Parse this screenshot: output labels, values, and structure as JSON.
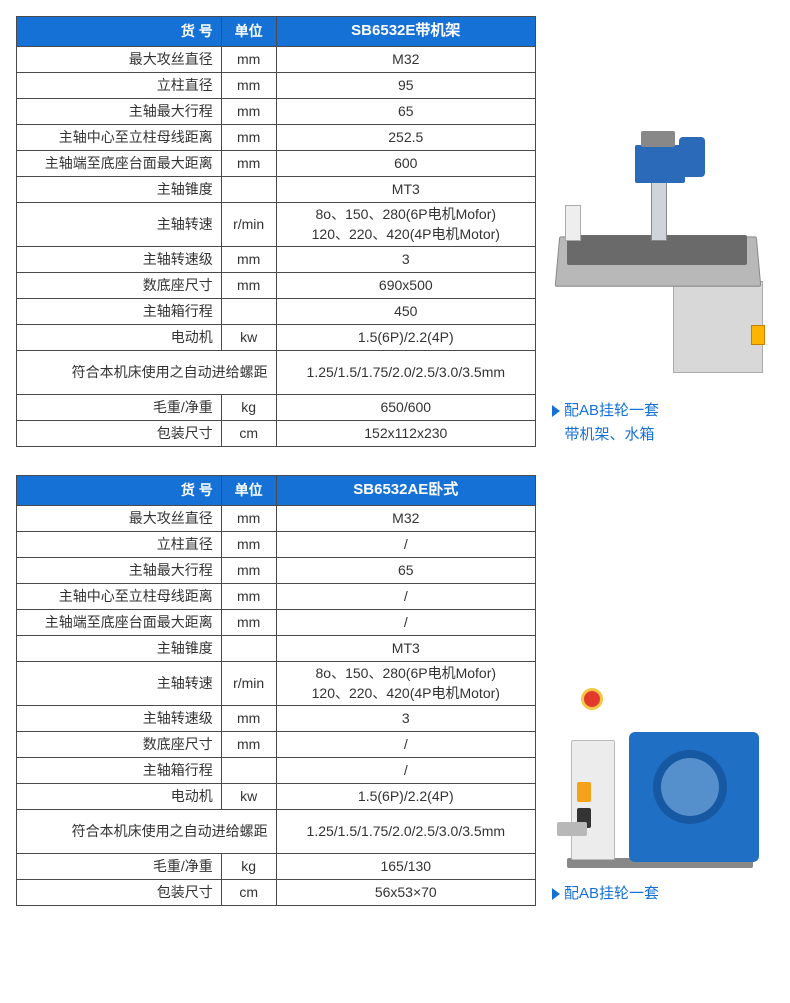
{
  "headers": {
    "col1": "货 号",
    "col2": "单位",
    "col3_1": "SB6532E带机架",
    "col3_2": "SB6532AE卧式"
  },
  "params": [
    "最大攻丝直径",
    "立柱直径",
    "主轴最大行程",
    "主轴中心至立柱母线距离",
    "主轴端至底座台面最大距离",
    "主轴锥度",
    "主轴转速",
    "主轴转速级",
    "数底座尺寸",
    "主轴箱行程",
    "电动机",
    "符合本机床使用之自动进给螺距",
    "毛重/净重",
    "包装尺寸"
  ],
  "units": [
    "mm",
    "mm",
    "mm",
    "mm",
    "mm",
    "",
    "r/min",
    "mm",
    "mm",
    "",
    "kw",
    "",
    "kg",
    "cm"
  ],
  "t1": [
    "M32",
    "95",
    "65",
    "252.5",
    "600",
    "MT3",
    "8o、150、280(6P电机Mofor)\n120、220、420(4P电机Motor)",
    "3",
    "690x500",
    "450",
    "1.5(6P)/2.2(4P)",
    "1.25/1.5/1.75/2.0/2.5/3.0/3.5mm",
    "650/600",
    "152x112x230"
  ],
  "t2": [
    "M32",
    "/",
    "65",
    "/",
    "/",
    "MT3",
    "8o、150、280(6P电机Mofor)\n120、220、420(4P电机Motor)",
    "3",
    "/",
    "/",
    "1.5(6P)/2.2(4P)",
    "1.25/1.5/1.75/2.0/2.5/3.0/3.5mm",
    "165/130",
    "56x53×70"
  ],
  "caption1_l1": "配AB挂轮一套",
  "caption1_l2": "带机架、水箱",
  "caption2": "配AB挂轮一套"
}
